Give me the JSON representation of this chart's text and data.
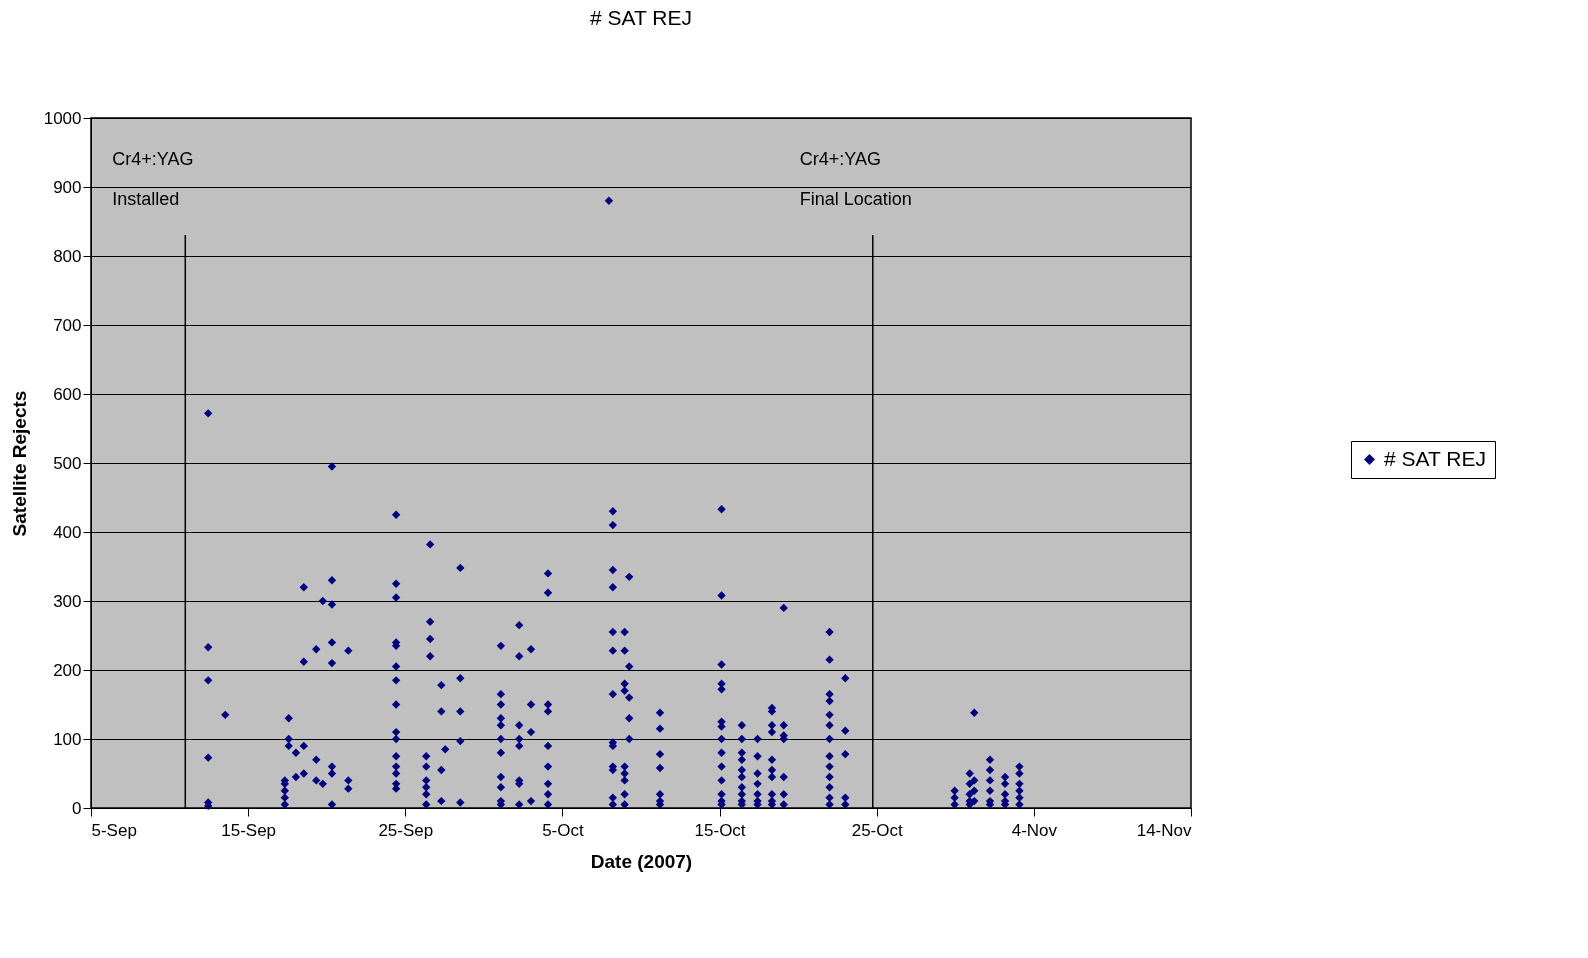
{
  "chart_data": {
    "type": "scatter",
    "title": "# SAT REJ",
    "xlabel": "Date (2007)",
    "ylabel": "Satellite Rejects",
    "xlim": [
      "2007-09-05",
      "2007-11-14"
    ],
    "ylim": [
      0,
      1000
    ],
    "xticks": [
      {
        "value": "2007-09-05",
        "label": "5-Sep"
      },
      {
        "value": "2007-09-15",
        "label": "15-Sep"
      },
      {
        "value": "2007-09-25",
        "label": "25-Sep"
      },
      {
        "value": "2007-10-05",
        "label": "5-Oct"
      },
      {
        "value": "2007-10-15",
        "label": "15-Oct"
      },
      {
        "value": "2007-10-25",
        "label": "25-Oct"
      },
      {
        "value": "2007-11-04",
        "label": "4-Nov"
      },
      {
        "value": "2007-11-14",
        "label": "14-Nov"
      }
    ],
    "yticks": [
      0,
      100,
      200,
      300,
      400,
      500,
      600,
      700,
      800,
      900,
      {
        "value": 1000,
        "label": "1000"
      }
    ],
    "grid": "y",
    "legend": "right",
    "marker": "diamond",
    "ref_lines": [
      {
        "axis": "x",
        "value": "2007-09-11",
        "label": "Cr4+:YAG\nInstalled",
        "color": "#000000"
      },
      {
        "axis": "x",
        "value": "2007-10-24T18:00",
        "label": "Cr4+:YAG\nFinal Location",
        "color": "#000000"
      }
    ],
    "series": [
      {
        "name": "# SAT REJ",
        "color": "#000080",
        "x": [
          "2007-09-12T11:00",
          "2007-09-12T11:00",
          "2007-09-12T11:00",
          "2007-09-12T11:00",
          "2007-09-12T11:00",
          "2007-09-12T11:00",
          "2007-09-13T13:00",
          "2007-09-17T08:00",
          "2007-09-17T08:00",
          "2007-09-17T08:00",
          "2007-09-17T08:00",
          "2007-09-17T08:00",
          "2007-09-17T14:00",
          "2007-09-17T14:00",
          "2007-09-17T14:00",
          "2007-09-18T01:00",
          "2007-09-18T01:00",
          "2007-09-18T13:00",
          "2007-09-18T13:00",
          "2007-09-18T13:00",
          "2007-09-18T13:00",
          "2007-09-19T08:00",
          "2007-09-19T08:00",
          "2007-09-19T08:00",
          "2007-09-19T18:00",
          "2007-09-19T18:00",
          "2007-09-20T08:00",
          "2007-09-20T08:00",
          "2007-09-20T08:00",
          "2007-09-20T08:00",
          "2007-09-20T08:00",
          "2007-09-20T08:00",
          "2007-09-20T08:00",
          "2007-09-20T08:00",
          "2007-09-21T09:00",
          "2007-09-21T09:00",
          "2007-09-21T09:00",
          "2007-09-24T10:00",
          "2007-09-24T10:00",
          "2007-09-24T10:00",
          "2007-09-24T10:00",
          "2007-09-24T10:00",
          "2007-09-24T10:00",
          "2007-09-24T10:00",
          "2007-09-24T10:00",
          "2007-09-24T10:00",
          "2007-09-24T10:00",
          "2007-09-24T10:00",
          "2007-09-24T10:00",
          "2007-09-24T10:00",
          "2007-09-24T10:00",
          "2007-09-24T10:00",
          "2007-09-26T08:00",
          "2007-09-26T08:00",
          "2007-09-26T08:00",
          "2007-09-26T08:00",
          "2007-09-26T08:00",
          "2007-09-26T08:00",
          "2007-09-26T14:00",
          "2007-09-26T14:00",
          "2007-09-26T14:00",
          "2007-09-26T14:00",
          "2007-09-27T07:00",
          "2007-09-27T07:00",
          "2007-09-27T07:00",
          "2007-09-27T07:00",
          "2007-09-27T13:00",
          "2007-09-28T12:00",
          "2007-09-28T12:00",
          "2007-09-28T12:00",
          "2007-09-28T12:00",
          "2007-09-28T12:00",
          "2007-10-01T02:00",
          "2007-10-01T02:00",
          "2007-10-01T02:00",
          "2007-10-01T02:00",
          "2007-10-01T02:00",
          "2007-10-01T02:00",
          "2007-10-01T02:00",
          "2007-10-01T02:00",
          "2007-10-01T02:00",
          "2007-10-01T02:00",
          "2007-10-01T02:00",
          "2007-10-02T06:00",
          "2007-10-02T06:00",
          "2007-10-02T06:00",
          "2007-10-02T06:00",
          "2007-10-02T06:00",
          "2007-10-02T06:00",
          "2007-10-02T06:00",
          "2007-10-02T06:00",
          "2007-10-03T00:00",
          "2007-10-03T00:00",
          "2007-10-03T00:00",
          "2007-10-03T00:00",
          "2007-10-04T02:00",
          "2007-10-04T02:00",
          "2007-10-04T02:00",
          "2007-10-04T02:00",
          "2007-10-04T02:00",
          "2007-10-04T02:00",
          "2007-10-04T02:00",
          "2007-10-04T02:00",
          "2007-10-04T02:00",
          "2007-10-07T23:00",
          "2007-10-08T05:00",
          "2007-10-08T05:00",
          "2007-10-08T05:00",
          "2007-10-08T05:00",
          "2007-10-08T05:00",
          "2007-10-08T05:00",
          "2007-10-08T05:00",
          "2007-10-08T05:00",
          "2007-10-08T05:00",
          "2007-10-08T05:00",
          "2007-10-08T05:00",
          "2007-10-08T05:00",
          "2007-10-08T05:00",
          "2007-10-08T23:00",
          "2007-10-08T23:00",
          "2007-10-08T23:00",
          "2007-10-08T23:00",
          "2007-10-08T23:00",
          "2007-10-08T23:00",
          "2007-10-08T23:00",
          "2007-10-08T23:00",
          "2007-10-08T23:00",
          "2007-10-09T06:00",
          "2007-10-09T06:00",
          "2007-10-09T06:00",
          "2007-10-09T06:00",
          "2007-10-09T06:00",
          "2007-10-11T05:00",
          "2007-10-11T05:00",
          "2007-10-11T05:00",
          "2007-10-11T05:00",
          "2007-10-11T05:00",
          "2007-10-11T05:00",
          "2007-10-11T05:00",
          "2007-10-15T03:00",
          "2007-10-15T03:00",
          "2007-10-15T03:00",
          "2007-10-15T03:00",
          "2007-10-15T03:00",
          "2007-10-15T03:00",
          "2007-10-15T03:00",
          "2007-10-15T03:00",
          "2007-10-15T03:00",
          "2007-10-15T03:00",
          "2007-10-15T03:00",
          "2007-10-15T03:00",
          "2007-10-15T03:00",
          "2007-10-15T03:00",
          "2007-10-16T10:00",
          "2007-10-16T10:00",
          "2007-10-16T10:00",
          "2007-10-16T10:00",
          "2007-10-16T10:00",
          "2007-10-16T10:00",
          "2007-10-16T10:00",
          "2007-10-16T10:00",
          "2007-10-16T10:00",
          "2007-10-16T10:00",
          "2007-10-17T10:00",
          "2007-10-17T10:00",
          "2007-10-17T10:00",
          "2007-10-17T10:00",
          "2007-10-17T10:00",
          "2007-10-17T10:00",
          "2007-10-17T10:00",
          "2007-10-18T08:00",
          "2007-10-18T08:00",
          "2007-10-18T08:00",
          "2007-10-18T08:00",
          "2007-10-18T08:00",
          "2007-10-18T08:00",
          "2007-10-18T08:00",
          "2007-10-18T08:00",
          "2007-10-18T08:00",
          "2007-10-18T08:00",
          "2007-10-19T02:00",
          "2007-10-19T02:00",
          "2007-10-19T02:00",
          "2007-10-19T02:00",
          "2007-10-19T02:00",
          "2007-10-19T02:00",
          "2007-10-19T02:00",
          "2007-10-22T00:00",
          "2007-10-22T00:00",
          "2007-10-22T00:00",
          "2007-10-22T00:00",
          "2007-10-22T00:00",
          "2007-10-22T00:00",
          "2007-10-22T00:00",
          "2007-10-22T00:00",
          "2007-10-22T00:00",
          "2007-10-22T00:00",
          "2007-10-22T00:00",
          "2007-10-22T00:00",
          "2007-10-22T00:00",
          "2007-10-23T00:00",
          "2007-10-23T00:00",
          "2007-10-23T00:00",
          "2007-10-23T00:00",
          "2007-10-23T00:00",
          "2007-10-29T23:00",
          "2007-10-29T23:00",
          "2007-10-29T23:00",
          "2007-10-30T22:00",
          "2007-10-30T22:00",
          "2007-10-30T22:00",
          "2007-10-30T22:00",
          "2007-10-30T22:00",
          "2007-10-31T05:00",
          "2007-10-31T05:00",
          "2007-10-31T05:00",
          "2007-10-31T05:00",
          "2007-11-01T05:00",
          "2007-11-01T05:00",
          "2007-11-01T05:00",
          "2007-11-01T05:00",
          "2007-11-01T05:00",
          "2007-11-01T05:00",
          "2007-11-02T04:00",
          "2007-11-02T04:00",
          "2007-11-02T04:00",
          "2007-11-02T04:00",
          "2007-11-02T04:00",
          "2007-11-03T02:00",
          "2007-11-03T02:00",
          "2007-11-03T02:00",
          "2007-11-03T02:00",
          "2007-11-03T02:00",
          "2007-11-03T02:00"
        ],
        "values": [
          572,
          233,
          185,
          73,
          8,
          3,
          135,
          5,
          15,
          25,
          35,
          40,
          130,
          100,
          90,
          45,
          80,
          320,
          212,
          90,
          50,
          230,
          70,
          40,
          300,
          35,
          495,
          330,
          295,
          240,
          210,
          60,
          50,
          5,
          228,
          40,
          28,
          425,
          325,
          305,
          240,
          235,
          205,
          185,
          150,
          110,
          100,
          75,
          60,
          50,
          35,
          28,
          75,
          60,
          40,
          30,
          20,
          5,
          382,
          270,
          245,
          220,
          178,
          140,
          55,
          10,
          85,
          348,
          188,
          140,
          97,
          8,
          235,
          165,
          150,
          130,
          120,
          100,
          80,
          45,
          30,
          10,
          5,
          265,
          220,
          120,
          100,
          90,
          40,
          35,
          5,
          230,
          150,
          110,
          10,
          340,
          312,
          150,
          140,
          90,
          60,
          35,
          20,
          5,
          880,
          430,
          410,
          345,
          320,
          255,
          228,
          165,
          95,
          90,
          60,
          55,
          15,
          5,
          255,
          228,
          180,
          170,
          60,
          50,
          40,
          20,
          5,
          335,
          205,
          160,
          130,
          100,
          138,
          115,
          78,
          58,
          20,
          10,
          5,
          433,
          308,
          208,
          180,
          172,
          125,
          118,
          100,
          80,
          60,
          40,
          20,
          10,
          5,
          120,
          100,
          80,
          70,
          55,
          45,
          30,
          20,
          10,
          5,
          100,
          75,
          50,
          35,
          20,
          10,
          5,
          145,
          140,
          120,
          110,
          70,
          55,
          45,
          20,
          10,
          5,
          290,
          120,
          105,
          100,
          45,
          20,
          5,
          255,
          215,
          165,
          155,
          135,
          120,
          100,
          75,
          60,
          45,
          30,
          15,
          5,
          188,
          112,
          78,
          15,
          5,
          25,
          15,
          5,
          50,
          35,
          20,
          10,
          5,
          138,
          40,
          25,
          10,
          70,
          55,
          40,
          25,
          10,
          5,
          45,
          35,
          20,
          10,
          5,
          60,
          50,
          35,
          25,
          15,
          5
        ]
      }
    ]
  }
}
